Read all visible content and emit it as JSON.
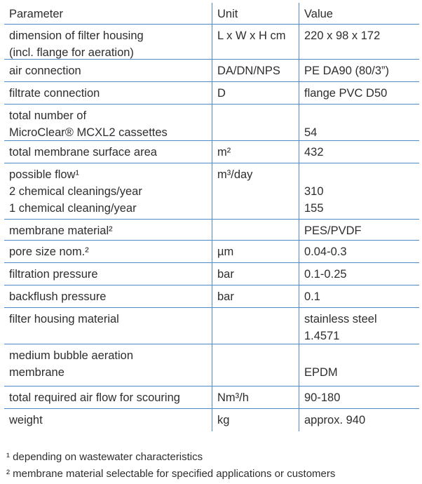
{
  "headers": [
    "Parameter",
    "Unit",
    "Value"
  ],
  "rows": [
    {
      "param": [
        "dimension of filter housing",
        "(incl. flange for aeration)"
      ],
      "unit": [
        "L x W x H cm"
      ],
      "value": [
        "220 x 98 x 172"
      ]
    },
    {
      "param": [
        "air connection"
      ],
      "unit": [
        "DA/DN/NPS"
      ],
      "value": [
        "PE DA90 (80/3”)"
      ]
    },
    {
      "param": [
        "filtrate connection"
      ],
      "unit": [
        "D"
      ],
      "value": [
        "flange PVC D50"
      ]
    },
    {
      "param": [
        "total number of",
        "MicroClear® MCXL2 cassettes"
      ],
      "unit": [
        ""
      ],
      "value": [
        "",
        "54"
      ]
    },
    {
      "param": [
        "total membrane surface area"
      ],
      "unit": [
        "m²"
      ],
      "value": [
        "432"
      ]
    },
    {
      "param": [
        "possible flow¹",
        "2 chemical cleanings/year",
        "1 chemical cleaning/year"
      ],
      "unit": [
        "m³/day"
      ],
      "value": [
        "",
        "310",
        "155"
      ]
    },
    {
      "param": [
        "membrane material²"
      ],
      "unit": [
        ""
      ],
      "value": [
        "PES/PVDF"
      ]
    },
    {
      "param": [
        "pore size nom.²"
      ],
      "unit": [
        "µm"
      ],
      "value": [
        "0.04-0.3"
      ]
    },
    {
      "param": [
        "filtration pressure"
      ],
      "unit": [
        "bar"
      ],
      "value": [
        "0.1-0.25"
      ]
    },
    {
      "param": [
        "backflush pressure"
      ],
      "unit": [
        "bar"
      ],
      "value": [
        "0.1"
      ]
    },
    {
      "param": [
        "filter housing material"
      ],
      "unit": [
        ""
      ],
      "value": [
        "stainless steel",
        "1.4571"
      ]
    },
    {
      "param": [
        "medium bubble aeration",
        "membrane"
      ],
      "unit": [
        ""
      ],
      "value": [
        "",
        "EPDM"
      ]
    },
    {
      "param": [
        "total required air flow for scouring"
      ],
      "unit": [
        "Nm³/h"
      ],
      "value": [
        "90-180"
      ]
    },
    {
      "param": [
        "weight"
      ],
      "unit": [
        "kg"
      ],
      "value": [
        "approx. 940"
      ]
    }
  ],
  "footnotes": [
    "¹ depending on wastewater characteristics",
    "² membrane material selectable for specified applications or customers"
  ],
  "colors": {
    "rule": "#4f89c7",
    "text": "#2e2e2e"
  }
}
